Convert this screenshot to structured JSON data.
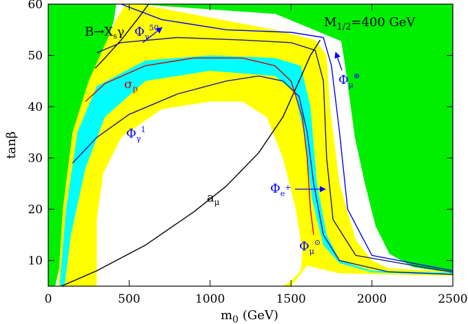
{
  "chart_data": {
    "type": "region",
    "xlabel": {
      "text": "m",
      "sub": "0",
      "rest": " (GeV)"
    },
    "ylabel": "tanβ",
    "background_color": "#00ee00",
    "xlim": [
      0,
      2500
    ],
    "ylim": [
      5,
      60
    ],
    "xticks": [
      0,
      500,
      1000,
      1500,
      2000,
      2500
    ],
    "yticks": [
      10,
      20,
      30,
      40,
      50,
      60
    ],
    "annotations": {
      "m_half": {
        "text": "M",
        "sub": "1/2",
        "rest": "=400 GeV"
      },
      "bsg": {
        "text": "B→X",
        "sub": "s",
        "rest": "γ"
      },
      "phi_g50": {
        "text": "Φ",
        "sub": "γ",
        "sup": "50"
      },
      "sigma": {
        "text": "σ",
        "sub": "p"
      },
      "phi_g1": {
        "text": "Φ",
        "sub": "γ",
        "sup": "1"
      },
      "amu": {
        "text": "a",
        "sub": "μ"
      },
      "phi_e": {
        "text": "Φ",
        "sub": "e",
        "sup": "+"
      },
      "phi_sun": {
        "text": "Φ",
        "sub": "μ",
        "sup": "⊙"
      },
      "phi_earth": {
        "text": "Φ",
        "sub": "μ",
        "sup": "⊕"
      }
    },
    "series": [
      {
        "kind": "region",
        "color": "#ffffff",
        "x": [
          43,
          77,
          204,
          340,
          405,
          420,
          540,
          1405,
          1810,
          1831,
          1895,
          1959,
          2023,
          2108,
          2257,
          2500,
          2500
        ],
        "values": [
          5,
          10,
          34,
          50,
          56.8,
          60,
          60,
          58.1,
          52.8,
          48.8,
          34,
          24.7,
          16.7,
          11.3,
          8.7,
          7.6,
          5
        ]
      },
      {
        "kind": "region",
        "color": "#ffff00",
        "x": [
          60,
          90,
          150,
          250,
          420,
          480,
          560,
          1400,
          1650,
          1720,
          1740,
          1800,
          1900,
          2000,
          2100,
          2500,
          2500,
          1800,
          1600,
          1500
        ],
        "values": [
          5,
          20,
          35,
          45,
          57,
          60,
          60,
          55,
          53,
          50,
          40,
          25,
          14,
          10,
          8.5,
          7.8,
          7,
          7.5,
          9,
          5
        ]
      },
      {
        "kind": "region",
        "color": "#00ffff",
        "x": [
          70,
          110,
          180,
          300,
          600,
          1000,
          1400,
          1560,
          1620,
          1660,
          1720,
          1800,
          2000,
          2500,
          2500,
          2000,
          1800,
          1700,
          1630,
          1580,
          1520,
          1400,
          1000,
          600,
          350,
          230,
          140,
          100
        ],
        "values": [
          5,
          20,
          35,
          44,
          49,
          50,
          49.5,
          48,
          40,
          25,
          15,
          10,
          8,
          7.6,
          7.2,
          7.7,
          9.5,
          13,
          22,
          35,
          43,
          46,
          47,
          45,
          38,
          28,
          15,
          5
        ]
      },
      {
        "kind": "region",
        "color": "#ffffff",
        "x": [
          300,
          300,
          340,
          450,
          700,
          1000,
          1200,
          1350,
          1450,
          1530,
          1570,
          1560,
          1500,
          1450
        ],
        "values": [
          5,
          18,
          27,
          34,
          39.5,
          41,
          41,
          38,
          30,
          20,
          12,
          8,
          6,
          5
        ]
      },
      {
        "kind": "line",
        "color": "#000000",
        "x": [
          80,
          300,
          600,
          900,
          1100,
          1300,
          1450,
          1550,
          1620,
          1680
        ],
        "values": [
          5,
          8,
          13,
          19.5,
          24.5,
          31,
          38,
          45,
          50,
          53
        ]
      },
      {
        "kind": "line",
        "color": "#000000",
        "x": [
          290,
          350,
          450,
          550,
          620
        ],
        "values": [
          47.5,
          49.5,
          53,
          57,
          60
        ]
      },
      {
        "kind": "line",
        "color": "#1a1a8c",
        "x": [
          150,
          300,
          500,
          800,
          1100,
          1300,
          1450,
          1550,
          1600,
          1640,
          1700,
          1800,
          2100,
          2500
        ],
        "values": [
          29,
          34,
          38.5,
          42.5,
          45,
          46,
          45,
          42,
          35,
          25,
          15,
          10,
          7.8,
          7.3
        ]
      },
      {
        "kind": "line",
        "color": "#d00000",
        "x": [
          230,
          350,
          600,
          900,
          1200,
          1400,
          1500,
          1570,
          1600,
          1620,
          1640
        ],
        "values": [
          41,
          44.5,
          48,
          49.5,
          49.5,
          48,
          45,
          38,
          30,
          20,
          15
        ]
      },
      {
        "kind": "line",
        "color": "#1a1a8c",
        "x": [
          300,
          450,
          800,
          1200,
          1500,
          1650,
          1700,
          1720,
          1760,
          1900,
          2500
        ],
        "values": [
          50.5,
          52.5,
          53.5,
          53,
          52.5,
          51,
          45,
          30,
          18,
          11,
          7.7
        ]
      },
      {
        "kind": "line",
        "color": "#0000ff",
        "x": [
          450,
          700,
          1100,
          1500,
          1700,
          1750,
          1800,
          1850,
          2000,
          2500
        ],
        "values": [
          60,
          57,
          55,
          54.5,
          53.5,
          48,
          35,
          20,
          11,
          8
        ]
      }
    ]
  }
}
